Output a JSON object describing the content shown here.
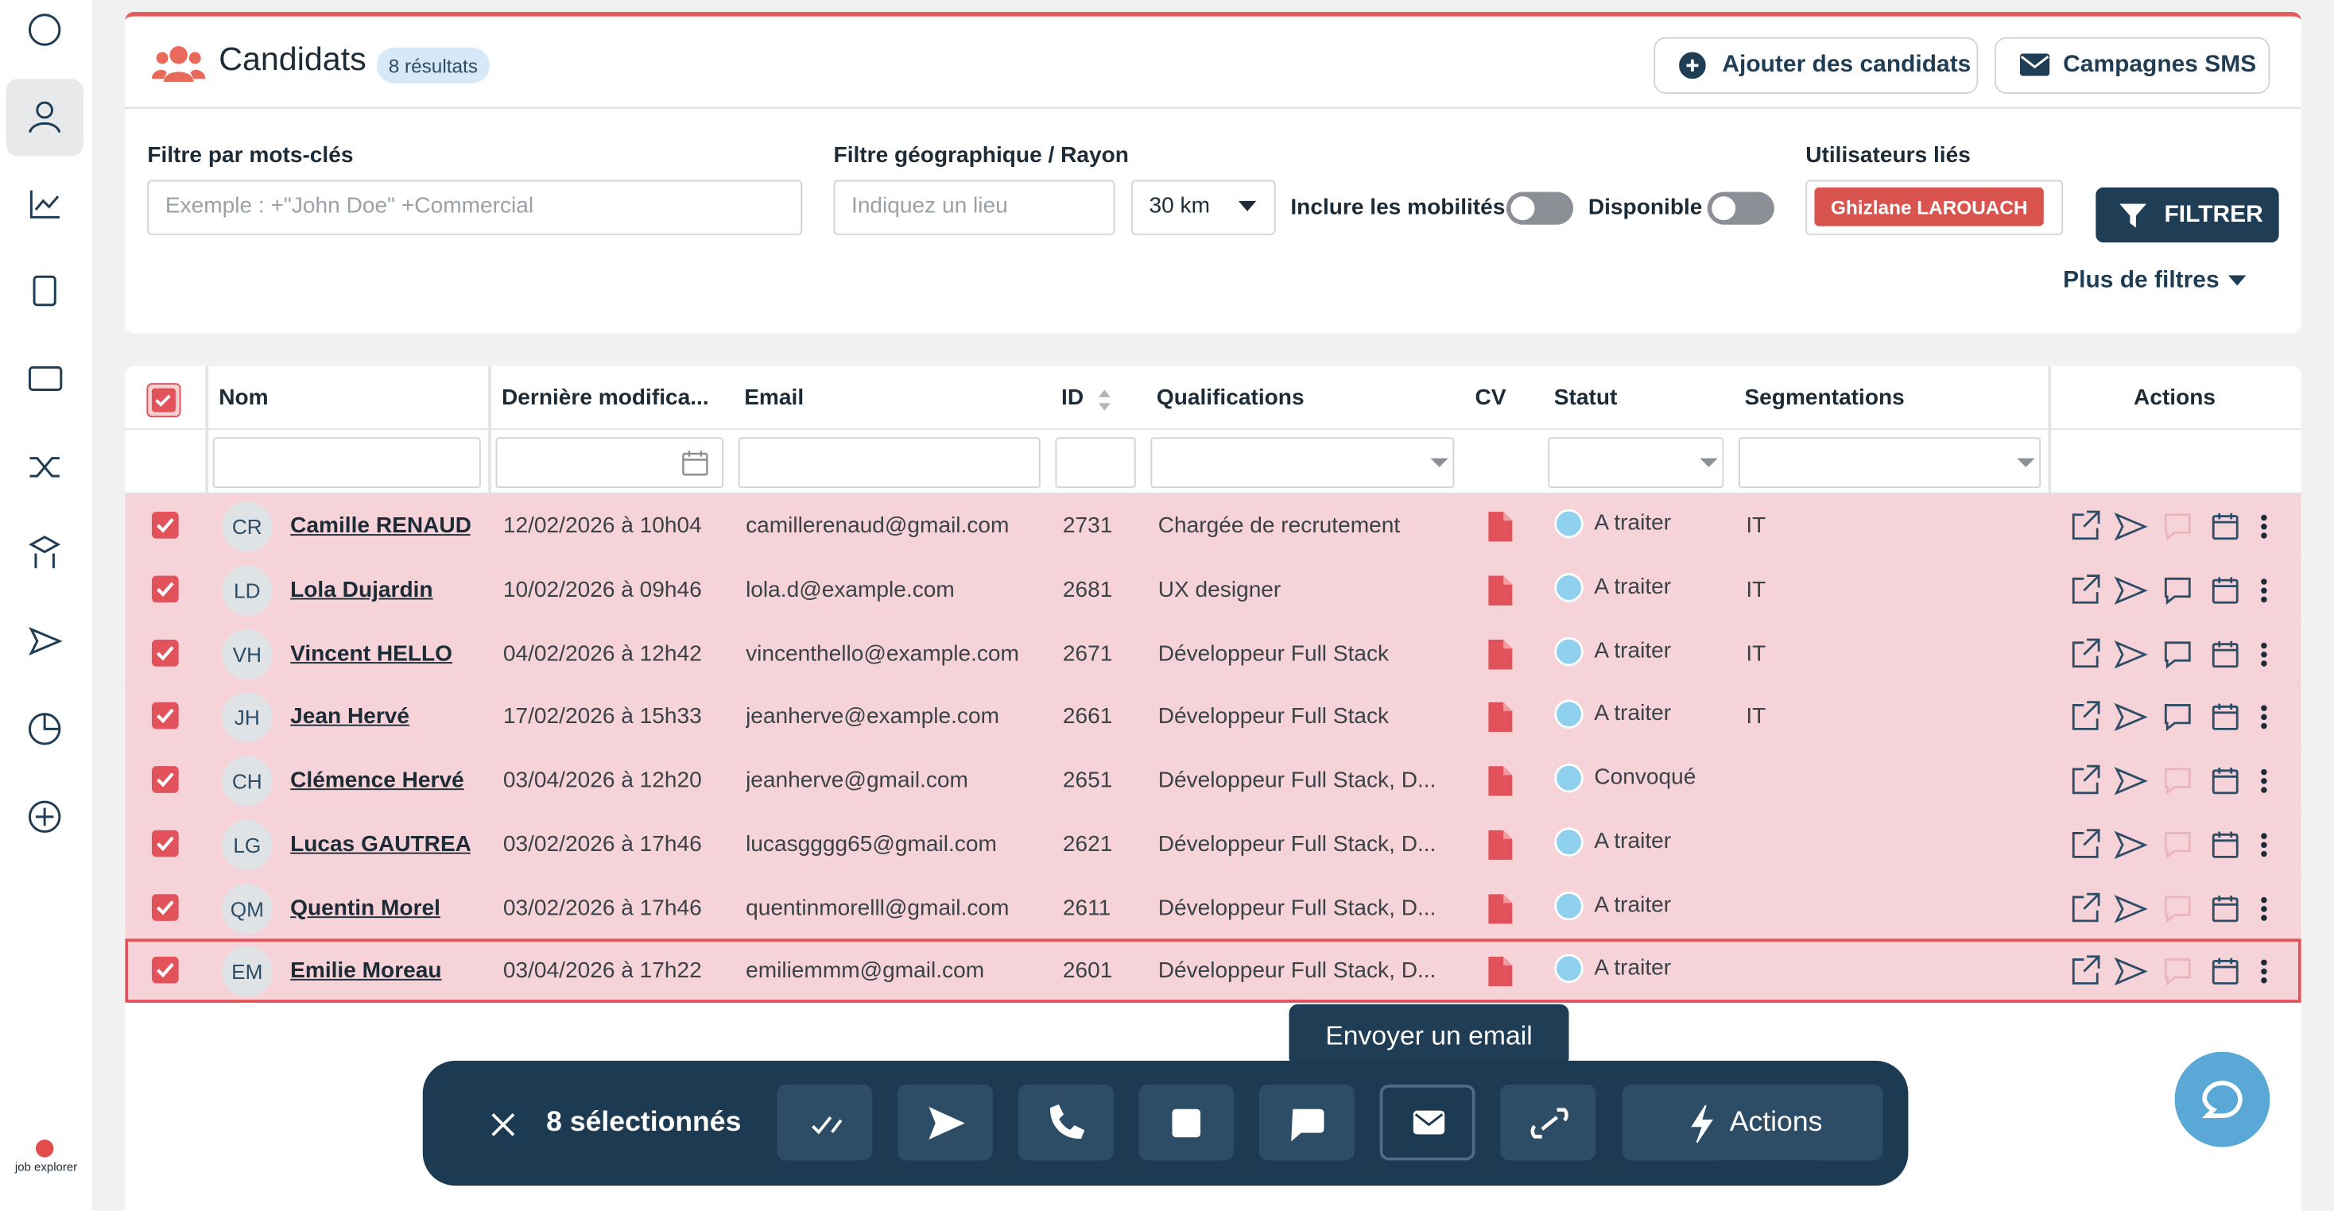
{
  "header": {
    "title": "Candidats",
    "count": "8 résultats",
    "buttons": [
      "Ajouter des candidats",
      "Campagnes SMS"
    ]
  },
  "filters": {
    "keywords_label": "Filtre par mots-clés",
    "keywords_placeholder": "Exemple : +\"John Doe\" +Commercial",
    "geo_label": "Filtre géographique / Rayon",
    "geo_placeholder": "Indiquez un lieu",
    "radius": "30 km",
    "mobility": "Inclure les mobilités",
    "available": "Disponible",
    "users_label": "Utilisateurs liés",
    "user_tag": "Ghizlane LAROUACH",
    "filter_button": "FILTRER",
    "more_filters": "Plus de filtres"
  },
  "table": {
    "columns": [
      "Nom",
      "Dernière modifica...",
      "Email",
      "ID",
      "Qualifications",
      "CV",
      "Statut",
      "Segmentations",
      "Actions"
    ],
    "rows": [
      [
        "CR",
        "Camille RENAUD",
        "12/02/2026 à 10h04",
        "camillerenaud@gmail.com",
        "2731",
        "Chargée de recrutement",
        "A traiter",
        "IT"
      ],
      [
        "LD",
        "Lola Dujardin",
        "10/02/2026 à 09h46",
        "lola.d@example.com",
        "2681",
        "UX designer",
        "A traiter",
        "IT"
      ],
      [
        "VH",
        "Vincent HELLO",
        "04/02/2026 à 12h42",
        "vincenthello@example.com",
        "2671",
        "Développeur Full Stack",
        "A traiter",
        "IT"
      ],
      [
        "JH",
        "Jean Hervé",
        "17/02/2026 à 15h33",
        "jeanherve@example.com",
        "2661",
        "Développeur Full Stack",
        "A traiter",
        "IT"
      ],
      [
        "CH",
        "Clémence Hervé",
        "03/04/2026 à 12h20",
        "jeanherve@gmail.com",
        "2651",
        "Développeur Full Stack, D...",
        "Convoqué",
        null
      ],
      [
        "LG",
        "Lucas GAUTREAU",
        "03/02/2026 à 17h46",
        "lucasgggg65@gmail.com",
        "2621",
        "Développeur Full Stack, D...",
        "A traiter",
        null
      ],
      [
        "QM",
        "Quentin Morel",
        "03/02/2026 à 17h46",
        "quentinmorelll@gmail.com",
        "2611",
        "Développeur Full Stack, D...",
        "A traiter",
        null
      ],
      [
        "EM",
        "Emilie Moreau",
        "03/04/2026 à 17h22",
        "emiliemmm@gmail.com",
        "2601",
        "Développeur Full Stack, D...",
        "A traiter",
        null
      ]
    ]
  },
  "bulk_bar": {
    "selected": "8 sélectionnés",
    "actions": "Actions",
    "tooltip": "Envoyer un email"
  },
  "logo": "job explorer"
}
